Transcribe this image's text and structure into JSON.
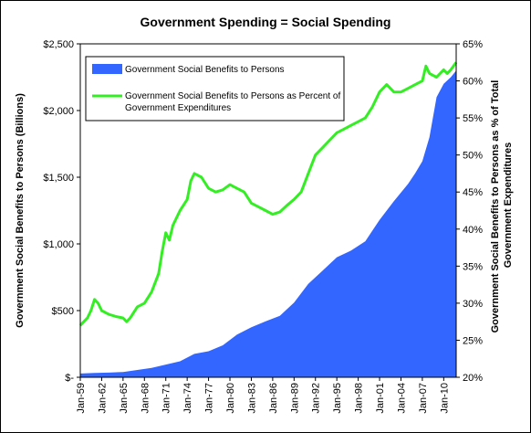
{
  "chart_data": {
    "type": "area",
    "title": "Government Spending = Social Spending",
    "ylabel": "Government Social Benefits to Persons (Billions)",
    "y2label_lines": [
      "Government Social Benefits to Persons as % of Total",
      "Government Expenditures"
    ],
    "ylim": [
      0,
      2500
    ],
    "y2lim": [
      20,
      65
    ],
    "y_ticks": [
      0,
      500,
      1000,
      1500,
      2000,
      2500
    ],
    "y_tick_labels": [
      "$-",
      "$500",
      "$1,000",
      "$1,500",
      "$2,000",
      "$2,500"
    ],
    "y2_ticks": [
      20,
      25,
      30,
      35,
      40,
      45,
      50,
      55,
      60,
      65
    ],
    "y2_tick_labels": [
      "20%",
      "25%",
      "30%",
      "35%",
      "40%",
      "45%",
      "50%",
      "55%",
      "60%",
      "65%"
    ],
    "x_range": [
      1959.0,
      2011.75
    ],
    "x_ticks": [
      1959,
      1962,
      1965,
      1968,
      1971,
      1974,
      1977,
      1980,
      1983,
      1986,
      1989,
      1992,
      1995,
      1998,
      2001,
      2004,
      2007,
      2010
    ],
    "x_tick_labels": [
      "Jan-59",
      "Jan-62",
      "Jan-65",
      "Jan-68",
      "Jan-71",
      "Jan-74",
      "Jan-77",
      "Jan-80",
      "Jan-83",
      "Jan-86",
      "Jan-89",
      "Jan-92",
      "Jan-95",
      "Jan-98",
      "Jan-01",
      "Jan-04",
      "Jan-07",
      "Jan-10"
    ],
    "legend_position": "top-left",
    "grid": false,
    "series": [
      {
        "name": "Government Social Benefits to Persons",
        "type": "area",
        "axis": "left",
        "color": "#3366ff",
        "x": [
          1959,
          1961,
          1963,
          1965,
          1967,
          1969,
          1971,
          1973,
          1975,
          1977,
          1979,
          1981,
          1983,
          1985,
          1987,
          1989,
          1991,
          1993,
          1995,
          1997,
          1999,
          2001,
          2003,
          2005,
          2006,
          2007,
          2008,
          2008.5,
          2009,
          2010,
          2011,
          2011.75
        ],
        "values": [
          28,
          32,
          35,
          40,
          55,
          70,
          95,
          120,
          175,
          195,
          240,
          320,
          375,
          420,
          460,
          560,
          700,
          800,
          900,
          950,
          1020,
          1180,
          1320,
          1450,
          1530,
          1620,
          1800,
          1950,
          2100,
          2200,
          2250,
          2300
        ]
      },
      {
        "name": "Government Social Benefits to Persons as Percent of Government Expenditures",
        "type": "line",
        "axis": "right",
        "color": "#33ee22",
        "x": [
          1959,
          1960,
          1960.5,
          1961,
          1961.5,
          1962,
          1963,
          1964,
          1965,
          1965.5,
          1966,
          1967,
          1968,
          1969,
          1970,
          1970.5,
          1971,
          1971.5,
          1972,
          1973,
          1974,
          1974.5,
          1975,
          1976,
          1977,
          1978,
          1979,
          1980,
          1981,
          1982,
          1983,
          1984,
          1985,
          1986,
          1987,
          1988,
          1989,
          1990,
          1991,
          1992,
          1993,
          1994,
          1995,
          1996,
          1997,
          1998,
          1999,
          2000,
          2001,
          2002,
          2003,
          2004,
          2005,
          2006,
          2007,
          2007.5,
          2008,
          2009,
          2010,
          2010.5,
          2011,
          2011.75
        ],
        "values": [
          27,
          28,
          29,
          30.5,
          30,
          29,
          28.5,
          28.2,
          28.0,
          27.5,
          28.0,
          29.5,
          30.0,
          31.5,
          34.0,
          37.0,
          39.5,
          38.5,
          40.5,
          42.5,
          44.0,
          46.5,
          47.5,
          47.0,
          45.5,
          45.0,
          45.3,
          46.0,
          45.5,
          45.0,
          43.5,
          43.0,
          42.5,
          42.0,
          42.3,
          43.2,
          44.0,
          45.0,
          47.5,
          50.0,
          51.0,
          52.0,
          53.0,
          53.5,
          54.0,
          54.5,
          55.0,
          56.5,
          58.5,
          59.5,
          58.5,
          58.5,
          59.0,
          59.5,
          60.0,
          62.0,
          61.0,
          60.5,
          61.5,
          61.0,
          61.5,
          62.5
        ]
      }
    ]
  }
}
